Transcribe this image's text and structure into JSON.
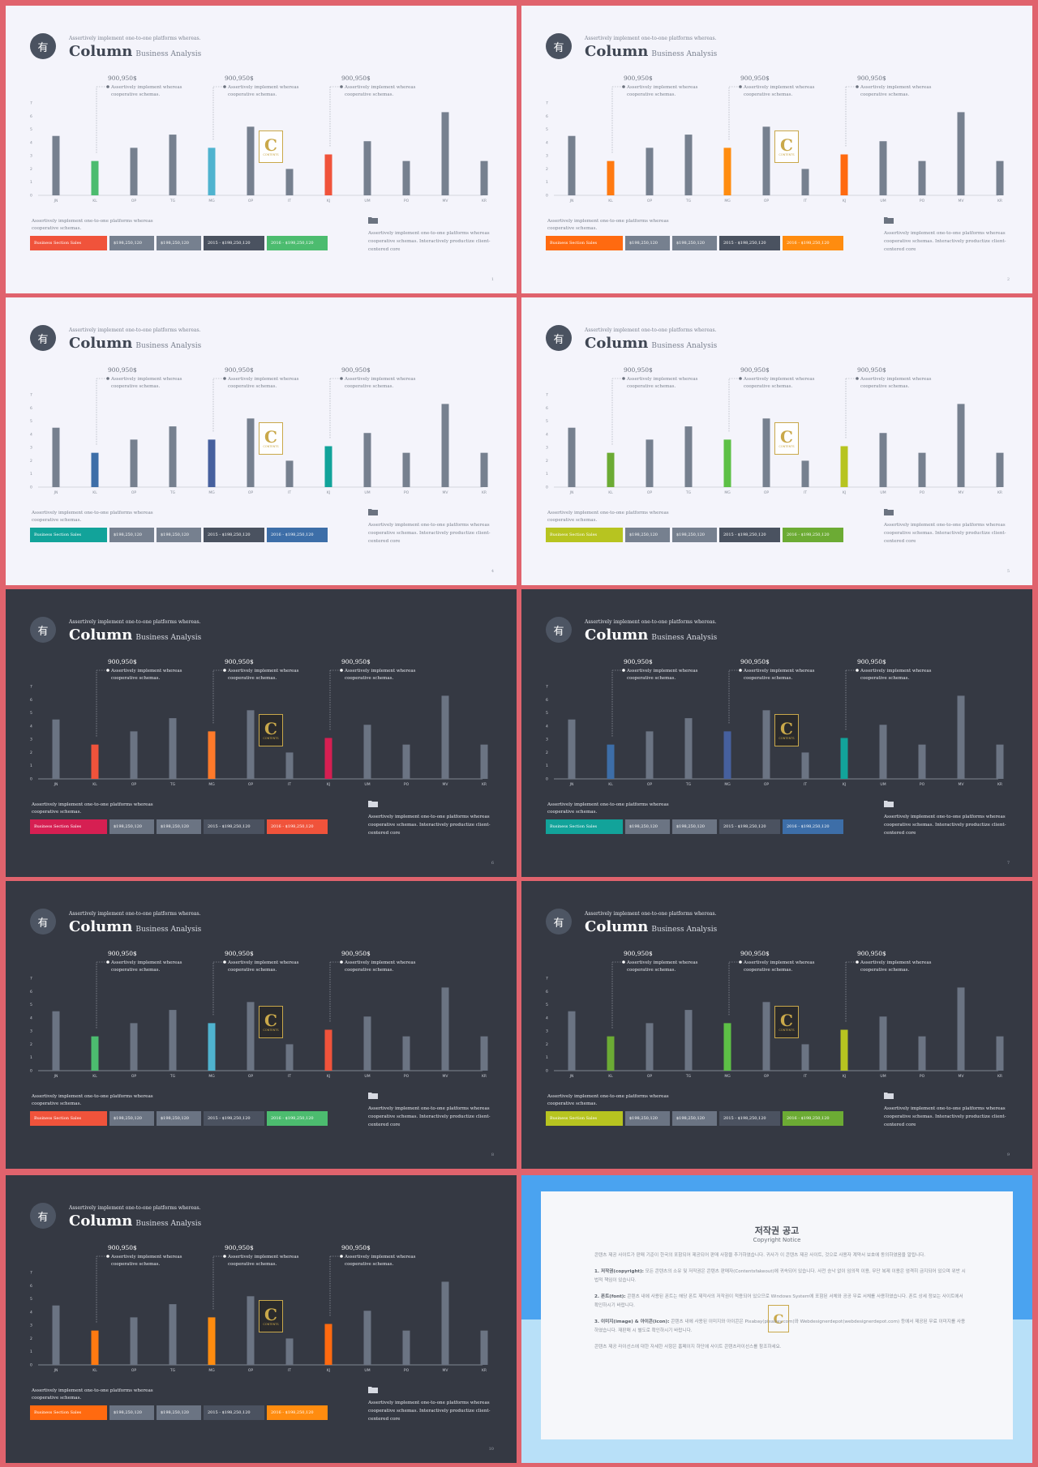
{
  "slide_common": {
    "logo_glyph": "有",
    "subtitle": "Assertively implement one-to-one platforms whereas.",
    "title": "Column",
    "title_sub": "Business Analysis",
    "note_left": "Assertively implement one-to-one platforms whereas cooperative schemas.",
    "note_right": "Assertively implement one-to-one platforms whereas cooperative schemas. Interactively productize client-centered core",
    "watermark_letter": "C",
    "watermark_text": "CONTENTS",
    "annotations": [
      {
        "value": "900,950$",
        "text1": "Assertively implement whereas",
        "text2": "cooperative schemas."
      },
      {
        "value": "900,950$",
        "text1": "Assertively implement whereas",
        "text2": "cooperative schemas."
      },
      {
        "value": "900,950$",
        "text1": "Assertively implement whereas",
        "text2": "cooperative schemas."
      }
    ],
    "boxes": [
      "Business Section Sales",
      "$198,250,120",
      "$198,250,120",
      "2015 - $198,250,120",
      "2016 - $198,250,120"
    ]
  },
  "chart_data": {
    "type": "bar",
    "categories": [
      "JN",
      "KL",
      "OP",
      "TG",
      "MG",
      "OP",
      "IT",
      "KJ",
      "UM",
      "PO",
      "MV",
      "KR"
    ],
    "values": [
      4.5,
      2.6,
      3.6,
      4.6,
      3.6,
      5.2,
      2.0,
      3.1,
      4.1,
      2.6,
      6.3,
      2.6
    ],
    "y_ticks": [
      "0",
      "1",
      "2",
      "3",
      "4",
      "5",
      "6",
      "7"
    ],
    "ylim": [
      0,
      7
    ],
    "highlight_indices": [
      1,
      4,
      7
    ]
  },
  "slides": [
    {
      "theme": "light",
      "page": "1",
      "colors": {
        "b1": "#4cbc6f",
        "b4": "#4fb3cf",
        "b7": "#f0533b",
        "box0": "#f0533b",
        "box4": "#4cbc6f"
      }
    },
    {
      "theme": "light",
      "page": "2",
      "colors": {
        "b1": "#ff7a11",
        "b4": "#ff8c0f",
        "b7": "#ff6a10",
        "box0": "#ff6a10",
        "box4": "#ff8c0f"
      }
    },
    {
      "theme": "light",
      "page": "4",
      "colors": {
        "b1": "#3d6ea8",
        "b4": "#46609e",
        "b7": "#12a39a",
        "box0": "#12a39a",
        "box4": "#3d6ea8"
      }
    },
    {
      "theme": "light",
      "page": "5",
      "colors": {
        "b1": "#6cab34",
        "b4": "#5dc046",
        "b7": "#b7c420",
        "box0": "#b7c420",
        "box4": "#6cab34"
      }
    },
    {
      "theme": "dark",
      "page": "6",
      "colors": {
        "b1": "#f0533b",
        "b4": "#ff7a2a",
        "b7": "#d61f52",
        "box0": "#d61f52",
        "box4": "#f0533b"
      }
    },
    {
      "theme": "dark",
      "page": "7",
      "colors": {
        "b1": "#3d6ea8",
        "b4": "#46609e",
        "b7": "#12a39a",
        "box0": "#12a39a",
        "box4": "#3d6ea8"
      }
    },
    {
      "theme": "dark",
      "page": "8",
      "colors": {
        "b1": "#4cbc6f",
        "b4": "#4fb3cf",
        "b7": "#f0533b",
        "box0": "#f0533b",
        "box4": "#4cbc6f"
      }
    },
    {
      "theme": "dark",
      "page": "9",
      "colors": {
        "b1": "#6cab34",
        "b4": "#5dc046",
        "b7": "#b7c420",
        "box0": "#b7c420",
        "box4": "#6cab34"
      }
    },
    {
      "theme": "dark",
      "page": "10",
      "colors": {
        "b1": "#ff7a11",
        "b4": "#ff8c0f",
        "b7": "#ff6a10",
        "box0": "#ff6a10",
        "box4": "#ff8c0f"
      }
    }
  ],
  "copyright": {
    "title": "저작권 공고",
    "subtitle": "Copyright Notice",
    "intro": "콘텐츠 제공 사이트가 판매 기준이 한국의 포함되어 제공되어 판매 사항을 추가하였습니다. 귀사가 이 콘텐츠 제공 사이트, 것으로 사용자 계약서 보호에 동의하였음을 알립니다.",
    "p1_head": "1. 저작권(copyright):",
    "p1": " 모든 콘텐츠의 소유 및 저작권은 콘텐츠 판매자(Contentsfakeout)에 귀속되어 있습니다. 사전 승낙 없이 임의적 이용, 무단 복제 이용은 엄격히 금지되어 있으며 위반 시 법적 책임이 있습니다.",
    "p2_head": "2. 폰트(font):",
    "p2": " 콘텐츠 내에 사용된 폰트는 해당 폰트 제작사의 저작권이 적용되어 있으므로 Windows System에 포함된 서체와 공공 무료 서체를 사용하였습니다. 폰트 상세 정보는 사이트에서 확인하시기 바랍니다.",
    "p3_head": "3. 이미지(image) & 아이콘(icon):",
    "p3": " 콘텐츠 내에 사용된 이미지와 아이콘은 Pixabay(pixabay.com)와 Webdesignerdepot(webdesignerdepot.com) 등에서 제공된 무료 이미지를 사용하였습니다. 재판매 시 별도로 확인하시기 바랍니다.",
    "footer": "콘텐츠 제공 라이선스에 대한 자세한 사항은 홈페이지 하단에 사이트 콘텐츠라이선스를 참조하세요."
  }
}
